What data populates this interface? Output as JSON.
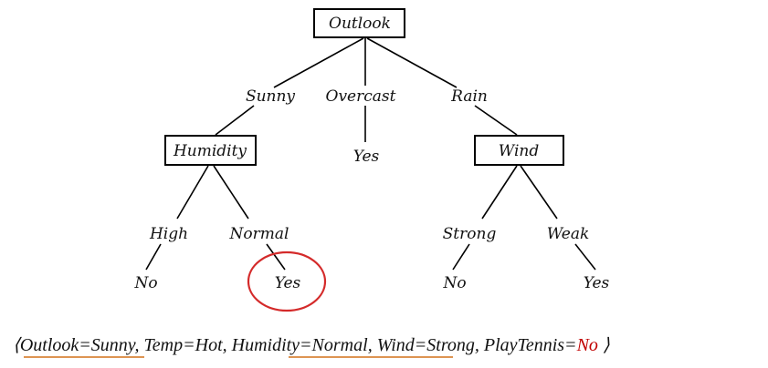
{
  "tree": {
    "root": {
      "label": "Outlook"
    },
    "branches": {
      "sunny": "Sunny",
      "overcast": "Overcast",
      "rain": "Rain",
      "high": "High",
      "normal": "Normal",
      "strong": "Strong",
      "weak": "Weak"
    },
    "nodes": {
      "humidity": "Humidity",
      "wind": "Wind"
    },
    "leaves": {
      "overcast_yes": "Yes",
      "high_no": "No",
      "normal_yes": "Yes",
      "strong_no": "No",
      "weak_yes": "Yes"
    }
  },
  "caption": {
    "open": "⟨",
    "outlook": "Outlook=Sunny",
    "sep1": ", ",
    "temp": "Temp=Hot",
    "sep2": ", ",
    "humidity": "Humidity=Normal",
    "sep3": ", ",
    "wind": "Wind=Strong",
    "sep4": ", ",
    "playtennis_key": "PlayTennis=",
    "playtennis_val": "No",
    "close": " ⟩"
  },
  "colors": {
    "highlight_circle": "#d42a2a",
    "underline": "#d8843a",
    "answer": "#c00000"
  }
}
